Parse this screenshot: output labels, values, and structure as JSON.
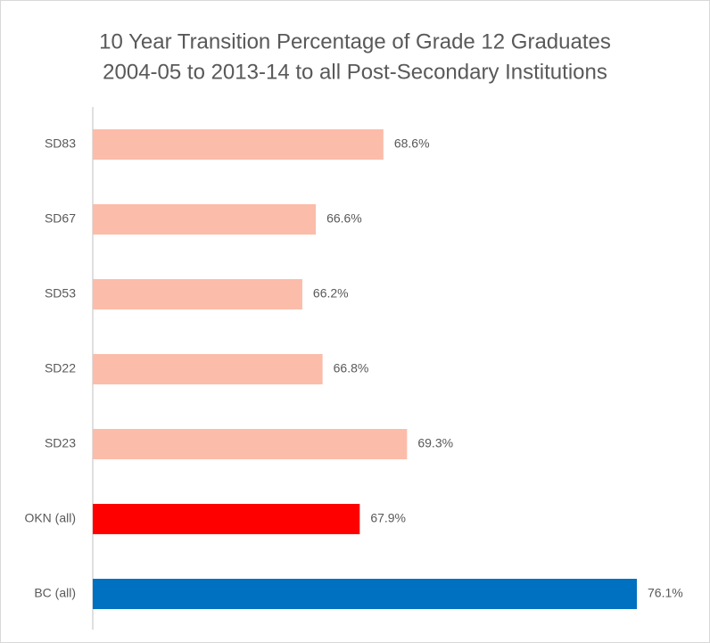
{
  "chart_data": {
    "type": "barh",
    "title": [
      "10 Year Transition Percentage of Grade 12 Graduates",
      "2004-05 to 2013-14 to all Post-Secondary Institutions"
    ],
    "categories": [
      "SD83",
      "SD67",
      "SD53",
      "SD22",
      "SD23",
      "OKN (all)",
      "BC (all)"
    ],
    "values": [
      68.6,
      66.6,
      66.2,
      66.8,
      69.3,
      67.9,
      76.1
    ],
    "value_labels": [
      "68.6%",
      "66.6%",
      "66.2%",
      "66.8%",
      "69.3%",
      "67.9%",
      "76.1%"
    ],
    "colors": [
      "#fbbca9",
      "#fbbca9",
      "#fbbca9",
      "#fbbca9",
      "#fbbca9",
      "#ff0000",
      "#0070c0"
    ],
    "xlim": [
      60,
      78
    ]
  }
}
